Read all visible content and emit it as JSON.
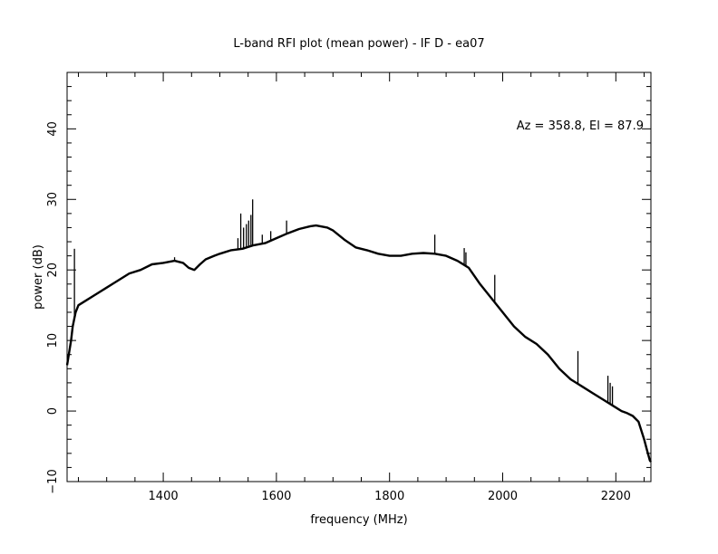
{
  "chart_data": {
    "type": "line",
    "title": "L-band RFI plot (mean power) - IF D - ea07",
    "xlabel": "frequency (MHz)",
    "ylabel": "power (dB)",
    "annotation": "Az = 358.8, El = 87.9",
    "xlim": [
      1230,
      2262
    ],
    "ylim": [
      -10,
      48
    ],
    "x_major_ticks": [
      1400,
      1600,
      1800,
      2000,
      2200
    ],
    "y_major_ticks": [
      -10,
      0,
      10,
      20,
      30,
      40
    ],
    "x_tick_labels": [
      "1400",
      "1600",
      "1800",
      "2000",
      "2200"
    ],
    "y_tick_labels": [
      "−10",
      "0",
      "10",
      "20",
      "30",
      "40"
    ],
    "line_color": "#000000",
    "grid": false,
    "series": [
      {
        "x": [
          1230,
          1233,
          1237,
          1240,
          1245,
          1250,
          1260,
          1280,
          1300,
          1320,
          1340,
          1360,
          1380,
          1400,
          1420,
          1435,
          1445,
          1455,
          1465,
          1475,
          1490,
          1500,
          1520,
          1540,
          1560,
          1580,
          1600,
          1620,
          1640,
          1660,
          1670,
          1690,
          1700,
          1720,
          1740,
          1760,
          1780,
          1800,
          1820,
          1840,
          1860,
          1880,
          1900,
          1920,
          1940,
          1960,
          1980,
          2000,
          2020,
          2040,
          2060,
          2080,
          2100,
          2120,
          2140,
          2160,
          2180,
          2200,
          2210,
          2220,
          2230,
          2240,
          2250,
          2255,
          2260,
          2262
        ],
        "y": [
          6.5,
          8,
          10,
          12,
          14,
          15,
          15.5,
          16.5,
          17.5,
          18.5,
          19.5,
          20,
          20.8,
          21,
          21.3,
          21,
          20.3,
          20,
          20.8,
          21.5,
          22,
          22.3,
          22.8,
          23,
          23.5,
          23.8,
          24.5,
          25.2,
          25.8,
          26.2,
          26.3,
          26,
          25.6,
          24.3,
          23.2,
          22.8,
          22.3,
          22,
          22,
          22.3,
          22.4,
          22.3,
          22,
          21.3,
          20.3,
          18,
          16,
          14,
          12,
          10.5,
          9.5,
          8,
          6,
          4.5,
          3.5,
          2.5,
          1.5,
          0.5,
          0,
          -0.3,
          -0.7,
          -1.5,
          -4,
          -5.5,
          -7,
          -7.2
        ]
      }
    ],
    "rfi_spikes": {
      "x": [
        1243,
        1420,
        1532,
        1537,
        1542,
        1547,
        1551,
        1555,
        1558,
        1575,
        1590,
        1618,
        1880,
        1932,
        1935,
        1986,
        2133,
        2186,
        2190,
        2194
      ],
      "y": [
        23,
        21.8,
        24.5,
        28,
        26,
        26.5,
        27,
        27.8,
        30,
        25,
        25.5,
        27,
        25,
        23.1,
        22.5,
        19.3,
        8.5,
        5,
        4,
        3.5
      ]
    }
  }
}
